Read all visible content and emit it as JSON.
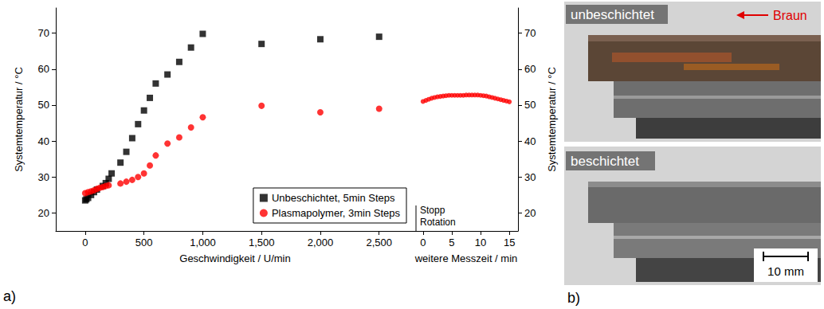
{
  "chart_data": {
    "type": "scatter",
    "panel": "a)",
    "xlabel": "Geschwindigkeit / U/min",
    "x2label": "weitere Messzeit / min",
    "ylabel": "Systemtemperatur / °C",
    "y2label": "Systemtemperatur / °C",
    "xlim": [
      -250,
      2800
    ],
    "xticks": [
      0,
      500,
      1000,
      1500,
      2000,
      2500
    ],
    "x2lim": [
      -1.5,
      16.5
    ],
    "x2ticks": [
      0,
      5,
      10,
      15
    ],
    "ylim": [
      15,
      77
    ],
    "yticks": [
      20,
      30,
      40,
      50,
      60,
      70
    ],
    "y2lim": [
      15,
      77
    ],
    "y2ticks": [
      20,
      30,
      40,
      50,
      60,
      70
    ],
    "grid": false,
    "legend": "lower right",
    "annotations": [
      "Stopp Rotation"
    ],
    "series": [
      {
        "name": "Unbeschichtet, 5min Steps",
        "color": "#000000",
        "marker": "square",
        "x": [
          0,
          10,
          25,
          50,
          75,
          100,
          150,
          175,
          200,
          225,
          300,
          350,
          400,
          450,
          500,
          550,
          600,
          700,
          800,
          900,
          1000,
          1500,
          2000,
          2500
        ],
        "values": [
          23.5,
          23.8,
          24.2,
          25,
          25.8,
          26.5,
          27.5,
          28.3,
          29.5,
          31,
          34,
          37,
          40.8,
          44.7,
          48.5,
          52,
          56,
          58.5,
          62,
          66,
          69.8,
          67,
          68.3,
          69
        ]
      },
      {
        "name": "Plasmapolymer, 3min Steps",
        "color": "#ff0000",
        "marker": "circle",
        "x": [
          0,
          25,
          50,
          75,
          100,
          125,
          150,
          175,
          200,
          300,
          350,
          400,
          450,
          500,
          550,
          600,
          700,
          800,
          900,
          1000,
          1500,
          2000,
          2500
        ],
        "values": [
          25.5,
          25.8,
          26,
          26.3,
          26.7,
          27,
          27.2,
          27.5,
          27.7,
          28.2,
          28.7,
          29.2,
          30,
          31,
          33.2,
          36,
          39.3,
          41,
          43.8,
          46.6,
          49.8,
          48,
          49
        ]
      },
      {
        "name": "Plasmapolymer, 3min Steps",
        "color": "#ff0000",
        "marker": "circle",
        "axis": "x2",
        "x": [
          0,
          0.5,
          1,
          1.5,
          2,
          2.5,
          3,
          3.5,
          4,
          4.5,
          5,
          5.5,
          6,
          6.5,
          7,
          7.5,
          8,
          8.5,
          9,
          9.5,
          10,
          10.5,
          11,
          11.5,
          12,
          12.5,
          13,
          13.5,
          14,
          14.5,
          15
        ],
        "values": [
          51,
          51.3,
          51.6,
          51.9,
          52.1,
          52.3,
          52.4,
          52.5,
          52.6,
          52.7,
          52.7,
          52.7,
          52.7,
          52.7,
          52.7,
          52.8,
          52.8,
          52.8,
          52.8,
          52.8,
          52.7,
          52.6,
          52.5,
          52.3,
          52.1,
          51.9,
          51.7,
          51.5,
          51.3,
          51.1,
          50.9
        ]
      }
    ]
  },
  "photo": {
    "panel": "b)",
    "images": [
      {
        "label": "unbeschichtet",
        "marker_label": "Braun"
      },
      {
        "label": "beschichtet",
        "scale_bar": "10 mm"
      }
    ]
  }
}
